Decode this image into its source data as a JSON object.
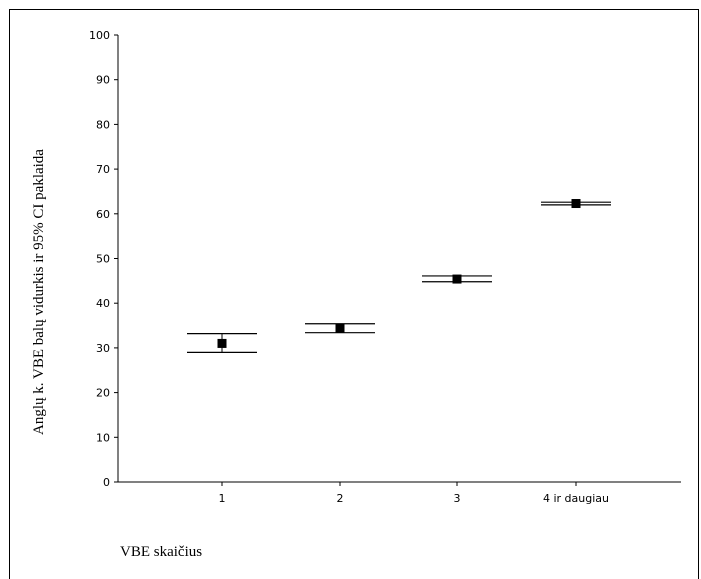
{
  "chart_data": {
    "type": "scatter",
    "title": "",
    "xlabel": "VBE skaičius",
    "ylabel": "Anglų k. VBE balų vidurkis ir 95% CI paklaida",
    "categories": [
      "1",
      "2",
      "3",
      "4 ir daugiau"
    ],
    "series": [
      {
        "means": [
          31.0,
          34.4,
          45.4,
          62.3
        ],
        "ci_low": [
          29.0,
          33.4,
          44.8,
          62.0
        ],
        "ci_high": [
          33.2,
          35.4,
          46.1,
          62.6
        ]
      }
    ],
    "ylim": [
      0,
      100
    ],
    "yticks": [
      "0",
      "10",
      "20",
      "30",
      "40",
      "50",
      "60",
      "70",
      "80",
      "90",
      "100"
    ],
    "grid": false,
    "legend": "none"
  }
}
